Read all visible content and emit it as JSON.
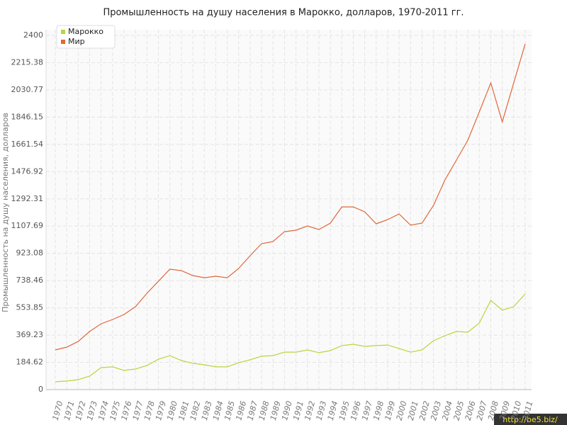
{
  "chart_data": {
    "type": "line",
    "title": "Промышленность на душу населения в Марокко, долларов, 1970-2011 гг.",
    "y_label": "Промышленность на душу населения, долларов",
    "watermark": "http://be5.biz/",
    "categories": [
      "1970",
      "1971",
      "1972",
      "1973",
      "1974",
      "1975",
      "1976",
      "1977",
      "1978",
      "1979",
      "1980",
      "1981",
      "1982",
      "1983",
      "1984",
      "1985",
      "1986",
      "1987",
      "1988",
      "1989",
      "1990",
      "1991",
      "1992",
      "1993",
      "1994",
      "1995",
      "1996",
      "1997",
      "1998",
      "1999",
      "2000",
      "2001",
      "2002",
      "2003",
      "2004",
      "2005",
      "2006",
      "2007",
      "2008",
      "2009",
      "2010",
      "2011"
    ],
    "series": [
      {
        "name": "Марокко",
        "color": "#b8d63a",
        "values": [
          53,
          58,
          67,
          91,
          149,
          154,
          130,
          139,
          163,
          206,
          230,
          197,
          178,
          168,
          154,
          154,
          182,
          202,
          226,
          230,
          254,
          254,
          269,
          250,
          264,
          298,
          307,
          293,
          298,
          302,
          278,
          254,
          269,
          331,
          365,
          394,
          389,
          451,
          605,
          538,
          562,
          648
        ]
      },
      {
        "name": "Мир",
        "color": "#e0673a",
        "values": [
          269,
          288,
          326,
          394,
          446,
          475,
          509,
          562,
          653,
          734,
          816,
          806,
          773,
          758,
          768,
          758,
          821,
          907,
          989,
          1003,
          1070,
          1080,
          1109,
          1085,
          1128,
          1238,
          1238,
          1205,
          1123,
          1152,
          1190,
          1114,
          1128,
          1248,
          1421,
          1555,
          1690,
          1882,
          2078,
          1814,
          2078,
          2342
        ]
      }
    ],
    "ylim": [
      0,
      2400
    ],
    "yticks": [
      0,
      184.62,
      369.23,
      553.85,
      738.46,
      923.08,
      1107.69,
      1292.31,
      1476.92,
      1661.54,
      1846.15,
      2030.77,
      2215.38,
      2400
    ],
    "grid": true,
    "legend": "top-left"
  }
}
